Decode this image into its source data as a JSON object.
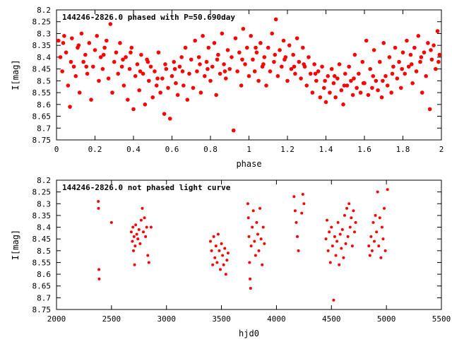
{
  "chart_data": [
    {
      "type": "scatter",
      "title": "144246-2826.0 phased with P=50.690day",
      "xlabel": "phase",
      "ylabel": "I[mag]",
      "xlim": [
        0,
        2
      ],
      "ylim": [
        8.75,
        8.2
      ],
      "y_inverted": true,
      "grid": false,
      "legend": "none",
      "marker_color": "#ff0000",
      "xticks": [
        "0",
        "0.2",
        "0.4",
        "0.6",
        "0.8",
        "1",
        "1.2",
        "1.4",
        "1.6",
        "1.8",
        "2"
      ],
      "yticks": [
        "8.2",
        "8.25",
        "8.3",
        "8.35",
        "8.4",
        "8.45",
        "8.5",
        "8.55",
        "8.6",
        "8.65",
        "8.7",
        "8.75"
      ],
      "points": [
        [
          0.01,
          8.33
        ],
        [
          0.02,
          8.4
        ],
        [
          0.03,
          8.46
        ],
        [
          0.04,
          8.31
        ],
        [
          0.05,
          8.38
        ],
        [
          0.06,
          8.52
        ],
        [
          0.07,
          8.61
        ],
        [
          0.08,
          8.32
        ],
        [
          0.09,
          8.44
        ],
        [
          0.1,
          8.48
        ],
        [
          0.11,
          8.36
        ],
        [
          0.12,
          8.55
        ],
        [
          0.13,
          8.3
        ],
        [
          0.14,
          8.42
        ],
        [
          0.15,
          8.39
        ],
        [
          0.16,
          8.47
        ],
        [
          0.17,
          8.34
        ],
        [
          0.18,
          8.58
        ],
        [
          0.19,
          8.44
        ],
        [
          0.2,
          8.37
        ],
        [
          0.21,
          8.31
        ],
        [
          0.22,
          8.5
        ],
        [
          0.23,
          8.4
        ],
        [
          0.24,
          8.45
        ],
        [
          0.25,
          8.36
        ],
        [
          0.26,
          8.33
        ],
        [
          0.27,
          8.49
        ],
        [
          0.28,
          8.26
        ],
        [
          0.29,
          8.55
        ],
        [
          0.3,
          8.42
        ],
        [
          0.31,
          8.38
        ],
        [
          0.32,
          8.47
        ],
        [
          0.33,
          8.34
        ],
        [
          0.34,
          8.44
        ],
        [
          0.35,
          8.52
        ],
        [
          0.36,
          8.4
        ],
        [
          0.37,
          8.58
        ],
        [
          0.38,
          8.45
        ],
        [
          0.39,
          8.36
        ],
        [
          0.4,
          8.62
        ],
        [
          0.41,
          8.48
        ],
        [
          0.42,
          8.43
        ],
        [
          0.43,
          8.54
        ],
        [
          0.44,
          8.39
        ],
        [
          0.45,
          8.47
        ],
        [
          0.46,
          8.6
        ],
        [
          0.47,
          8.41
        ],
        [
          0.48,
          8.5
        ],
        [
          0.49,
          8.44
        ],
        [
          0.5,
          8.57
        ],
        [
          0.51,
          8.46
        ],
        [
          0.52,
          8.52
        ],
        [
          0.53,
          8.38
        ],
        [
          0.54,
          8.55
        ],
        [
          0.55,
          8.49
        ],
        [
          0.56,
          8.64
        ],
        [
          0.57,
          8.45
        ],
        [
          0.58,
          8.53
        ],
        [
          0.59,
          8.66
        ],
        [
          0.6,
          8.48
        ],
        [
          0.61,
          8.42
        ],
        [
          0.62,
          8.51
        ],
        [
          0.63,
          8.56
        ],
        [
          0.64,
          8.44
        ],
        [
          0.65,
          8.4
        ],
        [
          0.66,
          8.52
        ],
        [
          0.67,
          8.36
        ],
        [
          0.68,
          8.58
        ],
        [
          0.69,
          8.47
        ],
        [
          0.7,
          8.41
        ],
        [
          0.71,
          8.53
        ],
        [
          0.72,
          8.33
        ],
        [
          0.73,
          8.46
        ],
        [
          0.74,
          8.4
        ],
        [
          0.75,
          8.55
        ],
        [
          0.76,
          8.31
        ],
        [
          0.77,
          8.48
        ],
        [
          0.78,
          8.42
        ],
        [
          0.79,
          8.36
        ],
        [
          0.8,
          8.5
        ],
        [
          0.81,
          8.44
        ],
        [
          0.82,
          8.34
        ],
        [
          0.83,
          8.56
        ],
        [
          0.84,
          8.39
        ],
        [
          0.85,
          8.47
        ],
        [
          0.86,
          8.3
        ],
        [
          0.87,
          8.43
        ],
        [
          0.88,
          8.49
        ],
        [
          0.89,
          8.37
        ],
        [
          0.9,
          8.45
        ],
        [
          0.91,
          8.4
        ],
        [
          0.92,
          8.71
        ],
        [
          0.93,
          8.32
        ],
        [
          0.94,
          8.46
        ],
        [
          0.95,
          8.38
        ],
        [
          0.96,
          8.52
        ],
        [
          0.97,
          8.28
        ],
        [
          0.98,
          8.43
        ],
        [
          0.99,
          8.36
        ],
        [
          1.0,
          8.48
        ],
        [
          1.01,
          8.31
        ],
        [
          1.02,
          8.41
        ],
        [
          1.03,
          8.46
        ],
        [
          1.04,
          8.38
        ],
        [
          1.05,
          8.5
        ],
        [
          1.06,
          8.34
        ],
        [
          1.07,
          8.44
        ],
        [
          1.08,
          8.4
        ],
        [
          1.09,
          8.52
        ],
        [
          1.1,
          8.36
        ],
        [
          1.11,
          8.46
        ],
        [
          1.12,
          8.3
        ],
        [
          1.13,
          8.42
        ],
        [
          1.14,
          8.24
        ],
        [
          1.15,
          8.48
        ],
        [
          1.16,
          8.37
        ],
        [
          1.17,
          8.44
        ],
        [
          1.18,
          8.33
        ],
        [
          1.19,
          8.4
        ],
        [
          1.2,
          8.5
        ],
        [
          1.21,
          8.35
        ],
        [
          1.22,
          8.45
        ],
        [
          1.23,
          8.39
        ],
        [
          1.24,
          8.47
        ],
        [
          1.25,
          8.32
        ],
        [
          1.26,
          8.42
        ],
        [
          1.27,
          8.49
        ],
        [
          1.28,
          8.36
        ],
        [
          1.29,
          8.44
        ],
        [
          1.3,
          8.52
        ],
        [
          1.31,
          8.4
        ],
        [
          1.32,
          8.47
        ],
        [
          1.33,
          8.55
        ],
        [
          1.34,
          8.43
        ],
        [
          1.35,
          8.5
        ],
        [
          1.36,
          8.46
        ],
        [
          1.37,
          8.57
        ],
        [
          1.38,
          8.44
        ],
        [
          1.39,
          8.53
        ],
        [
          1.4,
          8.59
        ],
        [
          1.41,
          8.48
        ],
        [
          1.42,
          8.55
        ],
        [
          1.43,
          8.45
        ],
        [
          1.44,
          8.51
        ],
        [
          1.45,
          8.57
        ],
        [
          1.46,
          8.49
        ],
        [
          1.47,
          8.43
        ],
        [
          1.48,
          8.54
        ],
        [
          1.49,
          8.6
        ],
        [
          1.5,
          8.47
        ],
        [
          1.51,
          8.52
        ],
        [
          1.52,
          8.44
        ],
        [
          1.53,
          8.5
        ],
        [
          1.54,
          8.56
        ],
        [
          1.55,
          8.39
        ],
        [
          1.56,
          8.53
        ],
        [
          1.57,
          8.47
        ],
        [
          1.58,
          8.55
        ],
        [
          1.59,
          8.42
        ],
        [
          1.6,
          8.51
        ],
        [
          1.61,
          8.33
        ],
        [
          1.62,
          8.56
        ],
        [
          1.63,
          8.45
        ],
        [
          1.64,
          8.53
        ],
        [
          1.65,
          8.37
        ],
        [
          1.66,
          8.5
        ],
        [
          1.67,
          8.54
        ],
        [
          1.68,
          8.42
        ],
        [
          1.69,
          8.57
        ],
        [
          1.7,
          8.34
        ],
        [
          1.71,
          8.48
        ],
        [
          1.72,
          8.52
        ],
        [
          1.73,
          8.4
        ],
        [
          1.74,
          8.55
        ],
        [
          1.75,
          8.44
        ],
        [
          1.76,
          8.36
        ],
        [
          1.77,
          8.49
        ],
        [
          1.78,
          8.42
        ],
        [
          1.79,
          8.53
        ],
        [
          1.8,
          8.38
        ],
        [
          1.81,
          8.47
        ],
        [
          1.82,
          8.33
        ],
        [
          1.83,
          8.44
        ],
        [
          1.84,
          8.39
        ],
        [
          1.85,
          8.51
        ],
        [
          1.86,
          8.36
        ],
        [
          1.87,
          8.46
        ],
        [
          1.88,
          8.31
        ],
        [
          1.89,
          8.42
        ],
        [
          1.9,
          8.55
        ],
        [
          1.91,
          8.38
        ],
        [
          1.92,
          8.48
        ],
        [
          1.93,
          8.34
        ],
        [
          1.94,
          8.62
        ],
        [
          1.95,
          8.41
        ],
        [
          1.96,
          8.35
        ],
        [
          1.97,
          8.45
        ],
        [
          1.98,
          8.29
        ],
        [
          1.99,
          8.39
        ],
        [
          0.035,
          8.34
        ],
        [
          0.075,
          8.42
        ],
        [
          0.115,
          8.35
        ],
        [
          0.155,
          8.44
        ],
        [
          0.245,
          8.39
        ],
        [
          0.345,
          8.41
        ],
        [
          0.385,
          8.38
        ],
        [
          0.435,
          8.46
        ],
        [
          0.475,
          8.42
        ],
        [
          0.525,
          8.49
        ],
        [
          0.565,
          8.43
        ],
        [
          0.615,
          8.45
        ],
        [
          0.655,
          8.46
        ],
        [
          0.745,
          8.43
        ],
        [
          0.785,
          8.45
        ],
        [
          0.835,
          8.41
        ],
        [
          0.875,
          8.46
        ],
        [
          0.965,
          8.41
        ],
        [
          1.035,
          8.36
        ],
        [
          1.075,
          8.43
        ],
        [
          1.135,
          8.39
        ],
        [
          1.185,
          8.41
        ],
        [
          1.235,
          8.44
        ],
        [
          1.285,
          8.43
        ],
        [
          1.345,
          8.47
        ],
        [
          1.395,
          8.5
        ],
        [
          1.445,
          8.48
        ],
        [
          1.495,
          8.52
        ],
        [
          1.545,
          8.49
        ],
        [
          1.595,
          8.51
        ],
        [
          1.645,
          8.48
        ],
        [
          1.695,
          8.5
        ],
        [
          1.745,
          8.47
        ],
        [
          1.795,
          8.45
        ],
        [
          1.845,
          8.43
        ],
        [
          1.895,
          8.4
        ],
        [
          1.945,
          8.37
        ],
        [
          1.985,
          8.42
        ]
      ]
    },
    {
      "type": "scatter",
      "title": "144246-2826.0 not phased light curve",
      "xlabel": "hjd0",
      "ylabel": "I[mag]",
      "xlim": [
        2000,
        5500
      ],
      "ylim": [
        8.75,
        8.2
      ],
      "y_inverted": true,
      "grid": false,
      "legend": "none",
      "marker_color": "#ff0000",
      "xticks": [
        "2000",
        "2500",
        "3000",
        "3500",
        "4000",
        "4500",
        "5000",
        "5500"
      ],
      "yticks": [
        "8.2",
        "8.25",
        "8.3",
        "8.35",
        "8.4",
        "8.45",
        "8.5",
        "8.55",
        "8.6",
        "8.65",
        "8.7",
        "8.75"
      ],
      "points": [
        [
          2380,
          8.29
        ],
        [
          2382,
          8.32
        ],
        [
          2386,
          8.58
        ],
        [
          2388,
          8.62
        ],
        [
          2500,
          8.38
        ],
        [
          2680,
          8.42
        ],
        [
          2690,
          8.46
        ],
        [
          2695,
          8.4
        ],
        [
          2700,
          8.5
        ],
        [
          2705,
          8.44
        ],
        [
          2710,
          8.56
        ],
        [
          2715,
          8.48
        ],
        [
          2720,
          8.39
        ],
        [
          2730,
          8.43
        ],
        [
          2740,
          8.45
        ],
        [
          2750,
          8.41
        ],
        [
          2760,
          8.47
        ],
        [
          2770,
          8.37
        ],
        [
          2780,
          8.32
        ],
        [
          2790,
          8.42
        ],
        [
          2800,
          8.36
        ],
        [
          2810,
          8.44
        ],
        [
          2820,
          8.4
        ],
        [
          2830,
          8.52
        ],
        [
          2840,
          8.55
        ],
        [
          2860,
          8.4
        ],
        [
          3400,
          8.46
        ],
        [
          3410,
          8.5
        ],
        [
          3420,
          8.56
        ],
        [
          3430,
          8.44
        ],
        [
          3440,
          8.53
        ],
        [
          3450,
          8.48
        ],
        [
          3460,
          8.55
        ],
        [
          3470,
          8.43
        ],
        [
          3480,
          8.5
        ],
        [
          3490,
          8.58
        ],
        [
          3500,
          8.47
        ],
        [
          3510,
          8.52
        ],
        [
          3520,
          8.56
        ],
        [
          3530,
          8.49
        ],
        [
          3540,
          8.6
        ],
        [
          3550,
          8.54
        ],
        [
          3560,
          8.51
        ],
        [
          3740,
          8.3
        ],
        [
          3745,
          8.36
        ],
        [
          3750,
          8.44
        ],
        [
          3755,
          8.55
        ],
        [
          3760,
          8.62
        ],
        [
          3765,
          8.66
        ],
        [
          3770,
          8.48
        ],
        [
          3780,
          8.4
        ],
        [
          3790,
          8.33
        ],
        [
          3800,
          8.46
        ],
        [
          3810,
          8.52
        ],
        [
          3820,
          8.38
        ],
        [
          3830,
          8.43
        ],
        [
          3840,
          8.5
        ],
        [
          3850,
          8.32
        ],
        [
          3860,
          8.45
        ],
        [
          3870,
          8.56
        ],
        [
          3880,
          8.4
        ],
        [
          3890,
          8.47
        ],
        [
          4160,
          8.27
        ],
        [
          4170,
          8.33
        ],
        [
          4180,
          8.38
        ],
        [
          4190,
          8.44
        ],
        [
          4200,
          8.5
        ],
        [
          4230,
          8.34
        ],
        [
          4240,
          8.26
        ],
        [
          4250,
          8.3
        ],
        [
          4450,
          8.45
        ],
        [
          4460,
          8.37
        ],
        [
          4470,
          8.5
        ],
        [
          4480,
          8.42
        ],
        [
          4490,
          8.55
        ],
        [
          4500,
          8.4
        ],
        [
          4510,
          8.48
        ],
        [
          4520,
          8.71
        ],
        [
          4530,
          8.44
        ],
        [
          4540,
          8.52
        ],
        [
          4550,
          8.46
        ],
        [
          4560,
          8.38
        ],
        [
          4570,
          8.56
        ],
        [
          4580,
          8.43
        ],
        [
          4590,
          8.49
        ],
        [
          4600,
          8.41
        ],
        [
          4610,
          8.53
        ],
        [
          4620,
          8.35
        ],
        [
          4630,
          8.47
        ],
        [
          4640,
          8.32
        ],
        [
          4650,
          8.44
        ],
        [
          4660,
          8.3
        ],
        [
          4670,
          8.4
        ],
        [
          4680,
          8.36
        ],
        [
          4690,
          8.48
        ],
        [
          4700,
          8.33
        ],
        [
          4710,
          8.42
        ],
        [
          4720,
          8.38
        ],
        [
          4840,
          8.48
        ],
        [
          4850,
          8.52
        ],
        [
          4860,
          8.44
        ],
        [
          4870,
          8.5
        ],
        [
          4880,
          8.38
        ],
        [
          4890,
          8.46
        ],
        [
          4900,
          8.35
        ],
        [
          4910,
          8.42
        ],
        [
          4920,
          8.25
        ],
        [
          4930,
          8.48
        ],
        [
          4940,
          8.36
        ],
        [
          4950,
          8.53
        ],
        [
          4960,
          8.4
        ],
        [
          4970,
          8.45
        ],
        [
          4980,
          8.32
        ],
        [
          4990,
          8.5
        ],
        [
          5010,
          8.24
        ]
      ]
    }
  ]
}
